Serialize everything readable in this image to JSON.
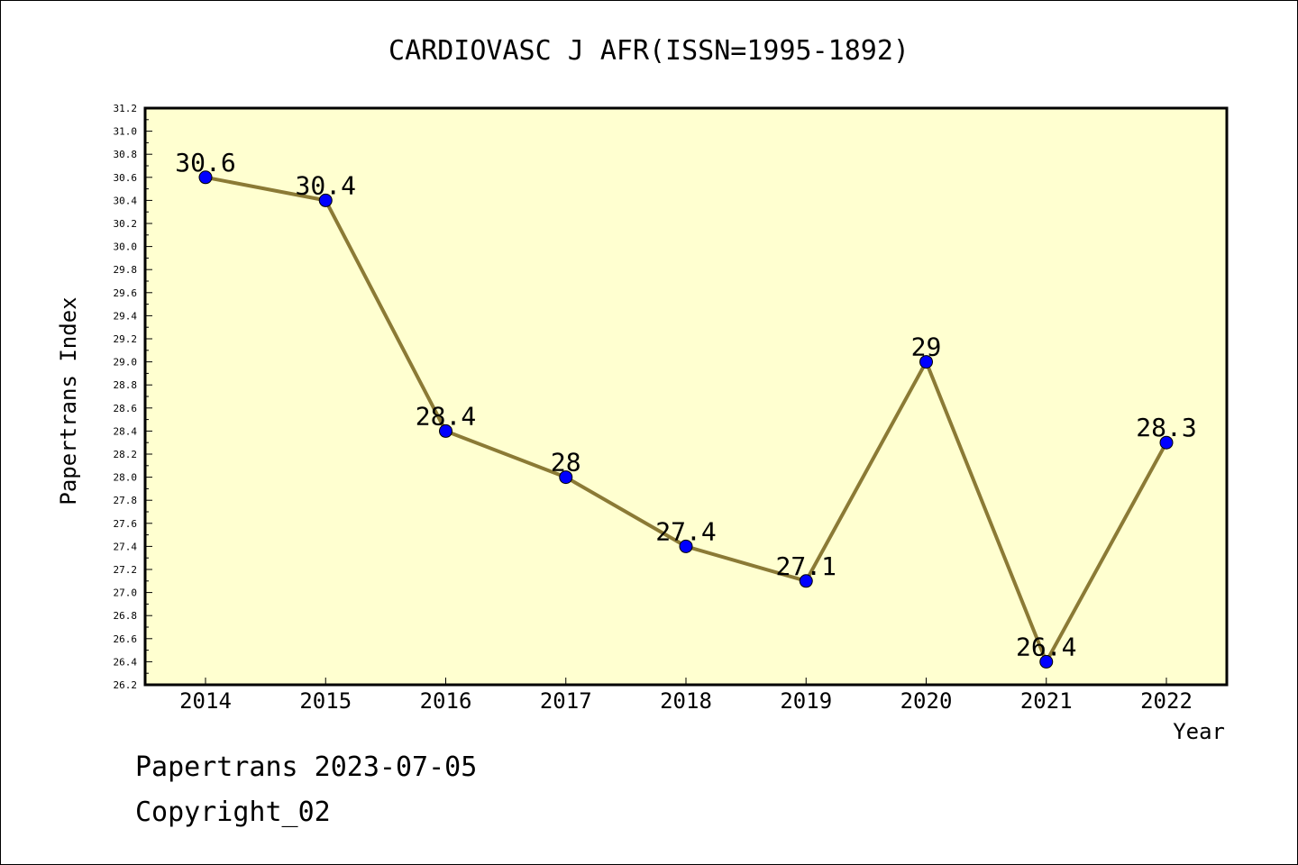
{
  "chart_data": {
    "type": "line",
    "title": "CARDIOVASC J AFR(ISSN=1995-1892)",
    "xlabel": "Year",
    "ylabel": "Papertrans Index",
    "x": [
      "2014",
      "2015",
      "2016",
      "2017",
      "2018",
      "2019",
      "2020",
      "2021",
      "2022"
    ],
    "values": [
      30.6,
      30.4,
      28.4,
      28.0,
      27.4,
      27.1,
      29.0,
      26.4,
      28.3
    ],
    "data_labels": [
      "30.6",
      "30.4",
      "28.4",
      "28",
      "27.4",
      "27.1",
      "29",
      "26.4",
      "28.3"
    ],
    "ylim": [
      26.2,
      31.2
    ],
    "yticks": [
      "26.2",
      "26.4",
      "26.6",
      "26.8",
      "27.0",
      "27.2",
      "27.4",
      "27.6",
      "27.8",
      "28.0",
      "28.2",
      "28.4",
      "28.6",
      "28.8",
      "29.0",
      "29.2",
      "29.4",
      "29.6",
      "29.8",
      "30.0",
      "30.2",
      "30.4",
      "30.6",
      "30.8",
      "31.0",
      "31.2"
    ],
    "grid": false,
    "colors": {
      "plot_background": "#ffffd0",
      "line": "#8b7a35",
      "marker": "#0000ff"
    }
  },
  "footer": {
    "line1": "Papertrans 2023-07-05",
    "line2": "Copyright_02"
  }
}
